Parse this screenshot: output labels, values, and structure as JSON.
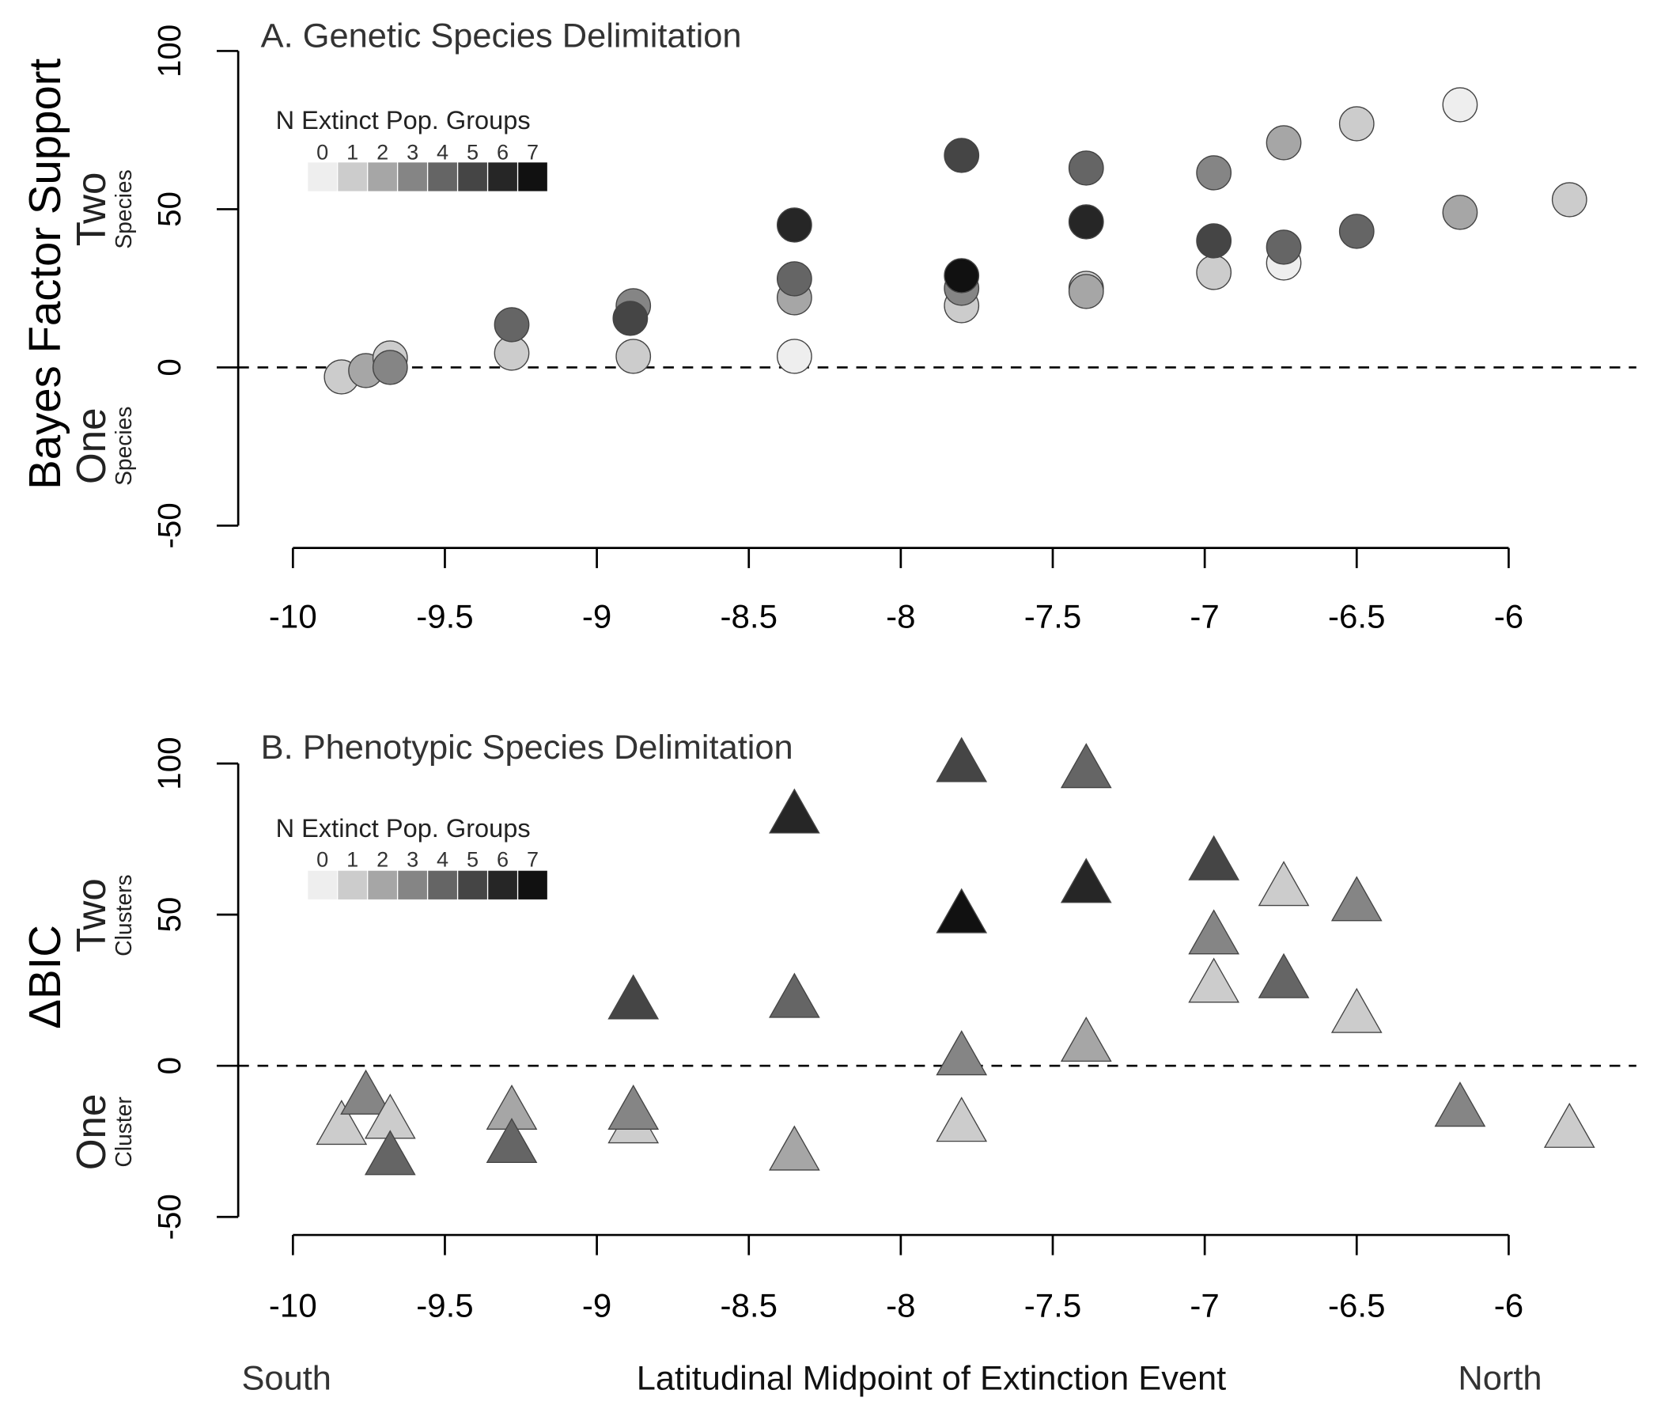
{
  "chart_data": [
    {
      "type": "scatter",
      "marker": "circle",
      "title": "A. Genetic Species Delimitation",
      "ylabel": "Bayes Factor Support",
      "upper_label": "Two",
      "upper_sublabel": "Species",
      "lower_label": "One",
      "lower_sublabel": "Species",
      "xlim": [
        -10.18,
        -5.58
      ],
      "xticks": [
        -10,
        -9.5,
        -9,
        -8.5,
        -8,
        -7.5,
        -7,
        -6.5,
        -6
      ],
      "ylim": [
        -50,
        100
      ],
      "yticks": [
        -50,
        0,
        50,
        100
      ],
      "reference_line": 0,
      "legend": {
        "title": "N Extinct Pop. Groups",
        "labels": [
          0,
          1,
          2,
          3,
          4,
          5,
          6,
          7
        ],
        "colors": [
          "#eeeeee",
          "#cccccc",
          "#a6a6a6",
          "#858585",
          "#656565",
          "#454545",
          "#262626",
          "#111111"
        ]
      },
      "series": [
        {
          "name": null,
          "x": [
            -9.84,
            -9.76,
            -9.68,
            -9.68,
            -9.28,
            -9.28,
            -8.88,
            -8.88,
            -8.89,
            -8.35,
            -8.35,
            -8.35,
            -8.35,
            -7.8,
            -7.8,
            -7.8,
            -7.8,
            -7.39,
            -7.39,
            -7.39,
            -7.39,
            -6.97,
            -6.97,
            -6.97,
            -6.74,
            -6.74,
            -6.74,
            -6.5,
            -6.5,
            -6.16,
            -6.16,
            -5.8
          ],
          "values": [
            -3,
            -1,
            3,
            0,
            4.5,
            13.5,
            3.5,
            19.5,
            15.5,
            3.5,
            22,
            28,
            45,
            19.5,
            25,
            29,
            67,
            25,
            24,
            63,
            46,
            30,
            40,
            61.5,
            33,
            38,
            71,
            43,
            77,
            49,
            83,
            53
          ],
          "group": [
            1,
            2,
            1,
            3,
            1,
            4,
            1,
            3,
            5,
            0,
            2,
            4,
            6,
            1,
            3,
            7,
            5,
            1,
            2,
            4,
            6,
            1,
            5,
            3,
            0,
            4,
            2,
            4,
            1,
            2,
            0,
            1
          ]
        }
      ]
    },
    {
      "type": "scatter",
      "marker": "triangle",
      "title": "B. Phenotypic Species Delimitation",
      "ylabel": "ΔBIC",
      "upper_label": "Two",
      "upper_sublabel": "Clusters",
      "lower_label": "One",
      "lower_sublabel": "Cluster",
      "xlim": [
        -10.18,
        -5.58
      ],
      "xticks": [
        -10,
        -9.5,
        -9,
        -8.5,
        -8,
        -7.5,
        -7,
        -6.5,
        -6
      ],
      "ylim": [
        -50,
        100
      ],
      "yticks": [
        -50,
        0,
        50,
        100
      ],
      "reference_line": 0,
      "legend": {
        "title": "N Extinct Pop. Groups",
        "labels": [
          0,
          1,
          2,
          3,
          4,
          5,
          6,
          7
        ],
        "colors": [
          "#eeeeee",
          "#cccccc",
          "#a6a6a6",
          "#858585",
          "#656565",
          "#454545",
          "#262626",
          "#111111"
        ]
      },
      "series": [
        {
          "name": null,
          "x": [
            -9.84,
            -9.76,
            -9.68,
            -9.68,
            -9.28,
            -9.28,
            -8.88,
            -8.88,
            -8.88,
            -8.35,
            -8.35,
            -8.35,
            -7.8,
            -7.8,
            -7.8,
            -7.8,
            -7.39,
            -7.39,
            -7.39,
            -6.97,
            -6.97,
            -6.97,
            -6.74,
            -6.74,
            -6.5,
            -6.5,
            -6.16,
            -5.8
          ],
          "values": [
            -20,
            -10,
            -18,
            -30,
            -15,
            -26,
            -19.5,
            -15,
            21.5,
            -28.5,
            22,
            83,
            -19,
            3,
            50,
            100,
            7.5,
            60,
            98,
            27,
            43,
            67.5,
            28.5,
            59,
            17,
            54,
            -14,
            -21
          ],
          "group": [
            1,
            3,
            1,
            4,
            2,
            4,
            1,
            3,
            5,
            2,
            4,
            6,
            1,
            3,
            7,
            5,
            2,
            6,
            4,
            1,
            3,
            5,
            4,
            1,
            1,
            3,
            3,
            1
          ]
        }
      ]
    }
  ],
  "footer": {
    "left": "South",
    "center": "Latitudinal Midpoint of Extinction Event",
    "right": "North"
  }
}
